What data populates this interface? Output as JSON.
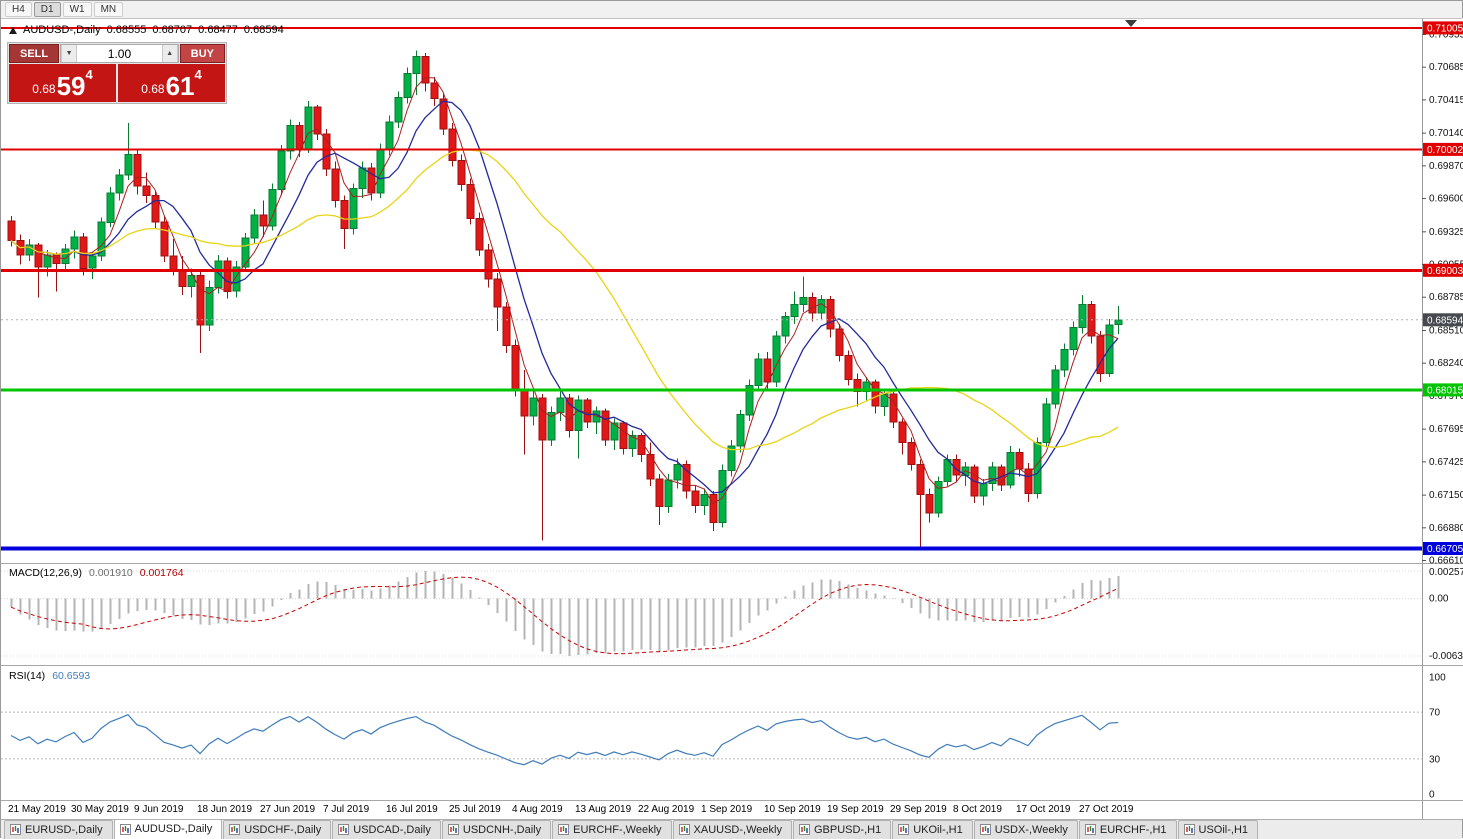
{
  "toolbar": {
    "timeframes": [
      "H4",
      "D1",
      "W1",
      "MN"
    ],
    "active": "D1"
  },
  "chart": {
    "title": "AUDUSD-,Daily",
    "open": "0.68555",
    "high": "0.68707",
    "low": "0.68477",
    "close": "0.68594"
  },
  "one_click": {
    "sell_label": "SELL",
    "buy_label": "BUY",
    "volume": "1.00",
    "bid": {
      "prefix": "0.68",
      "big": "59",
      "pip": "4"
    },
    "ask": {
      "prefix": "0.68",
      "big": "61",
      "pip": "4"
    }
  },
  "price_axis": {
    "ticks": [
      "0.70955",
      "0.70685",
      "0.70415",
      "0.70140",
      "0.69870",
      "0.69600",
      "0.69325",
      "0.69055",
      "0.68785",
      "0.68510",
      "0.68240",
      "0.67970",
      "0.67695",
      "0.67425",
      "0.67150",
      "0.66880",
      "0.66610"
    ]
  },
  "levels": [
    {
      "price": 0.71005,
      "label": "0.71005",
      "color": "#e00000",
      "thickness": 2
    },
    {
      "price": 0.70002,
      "label": "0.70002",
      "color": "#e00000",
      "thickness": 2
    },
    {
      "price": 0.69003,
      "label": "0.69003",
      "color": "#e00000",
      "thickness": 3
    },
    {
      "price": 0.68015,
      "label": "0.68015",
      "color": "#00c400",
      "thickness": 3
    },
    {
      "price": 0.66705,
      "label": "0.66705",
      "color": "#0000dc",
      "thickness": 4
    }
  ],
  "current_price": {
    "value": 0.68594,
    "label": "0.68594",
    "badge_color": "#46494d",
    "line_color": "#b0b0b0"
  },
  "macd": {
    "label": "MACD(12,26,9)",
    "value_macd": "0.001910",
    "value_signal": "0.001764",
    "axis_top": "0.002574",
    "axis_zero": "0.00",
    "axis_bottom": "-0.006326",
    "fast": 12,
    "sl": 26,
    "sig": 9,
    "histogram_color": "#b4b4b4",
    "signal_color": "#cc0000"
  },
  "rsi": {
    "label": "RSI(14)",
    "value": "60.6593",
    "period": 14,
    "axis": [
      "100",
      "70",
      "30",
      "0"
    ],
    "levels": [
      70,
      30
    ],
    "line_color": "#3f7cba"
  },
  "tabs": [
    {
      "label": "EURUSD-,Daily"
    },
    {
      "label": "AUDUSD-,Daily"
    },
    {
      "label": "USDCHF-,Daily"
    },
    {
      "label": "USDCAD-,Daily"
    },
    {
      "label": "USDCNH-,Daily"
    },
    {
      "label": "EURCHF-,Weekly"
    },
    {
      "label": "XAUUSD-,Weekly"
    },
    {
      "label": "GBPUSD-,H1"
    },
    {
      "label": "UKOil-,H1"
    },
    {
      "label": "USDX-,Weekly"
    },
    {
      "label": "EURCHF-,H1"
    },
    {
      "label": "USOil-,H1"
    }
  ],
  "active_tab_index": 1,
  "chart_data": {
    "type": "candlestick",
    "symbol": "AUDUSD",
    "period": "Daily",
    "ylim": [
      0.66593,
      0.71087
    ],
    "up_color": "#00b246",
    "up_stroke": "#0a7a33",
    "down_color": "#e21717",
    "down_stroke": "#991111",
    "x_labels": [
      "21 May 2019",
      "30 May 2019",
      "9 Jun 2019",
      "18 Jun 2019",
      "27 Jun 2019",
      "7 Jul 2019",
      "16 Jul 2019",
      "25 Jul 2019",
      "4 Aug 2019",
      "13 Aug 2019",
      "22 Aug 2019",
      "1 Sep 2019",
      "10 Sep 2019",
      "19 Sep 2019",
      "29 Sep 2019",
      "8 Oct 2019",
      "17 Oct 2019",
      "27 Oct 2019"
    ],
    "label_every": 7,
    "moving_averages": [
      {
        "name": "ma-fast",
        "period": 4,
        "color": "#aa2020",
        "width": 1
      },
      {
        "name": "ma-mid",
        "period": 8,
        "color": "#222a9e",
        "width": 1.3
      },
      {
        "name": "ma-slow",
        "period": 24,
        "color": "#e8d414",
        "width": 1.3
      }
    ],
    "candles": [
      [
        0.6941,
        0.6945,
        0.692,
        0.6925
      ],
      [
        0.6925,
        0.693,
        0.6905,
        0.6913
      ],
      [
        0.6913,
        0.6926,
        0.6908,
        0.6921
      ],
      [
        0.6921,
        0.6923,
        0.6878,
        0.6903
      ],
      [
        0.6903,
        0.6917,
        0.6895,
        0.6913
      ],
      [
        0.6913,
        0.6915,
        0.6883,
        0.6906
      ],
      [
        0.6906,
        0.6922,
        0.69,
        0.6918
      ],
      [
        0.6918,
        0.6933,
        0.691,
        0.6928
      ],
      [
        0.6928,
        0.6931,
        0.6896,
        0.6902
      ],
      [
        0.6902,
        0.6916,
        0.6893,
        0.6912
      ],
      [
        0.6912,
        0.6944,
        0.6908,
        0.694
      ],
      [
        0.694,
        0.6969,
        0.6936,
        0.6964
      ],
      [
        0.6964,
        0.6984,
        0.6958,
        0.6979
      ],
      [
        0.6979,
        0.7022,
        0.6975,
        0.6996
      ],
      [
        0.6996,
        0.7,
        0.6963,
        0.697
      ],
      [
        0.697,
        0.6981,
        0.6956,
        0.6962
      ],
      [
        0.6962,
        0.6966,
        0.6935,
        0.694
      ],
      [
        0.694,
        0.6945,
        0.6907,
        0.6912
      ],
      [
        0.6912,
        0.6926,
        0.6896,
        0.6901
      ],
      [
        0.6901,
        0.6912,
        0.688,
        0.6887
      ],
      [
        0.6887,
        0.6902,
        0.6878,
        0.6896
      ],
      [
        0.6896,
        0.6899,
        0.6832,
        0.6855
      ],
      [
        0.6855,
        0.6892,
        0.685,
        0.6886
      ],
      [
        0.6886,
        0.6913,
        0.6881,
        0.6908
      ],
      [
        0.6908,
        0.6911,
        0.6877,
        0.6883
      ],
      [
        0.6883,
        0.6908,
        0.6878,
        0.6903
      ],
      [
        0.6903,
        0.6931,
        0.6899,
        0.6927
      ],
      [
        0.6927,
        0.6951,
        0.6922,
        0.6946
      ],
      [
        0.6946,
        0.6958,
        0.6928,
        0.6937
      ],
      [
        0.6937,
        0.6972,
        0.6933,
        0.6967
      ],
      [
        0.6967,
        0.7004,
        0.6962,
        0.6999
      ],
      [
        0.6999,
        0.7025,
        0.6992,
        0.702
      ],
      [
        0.702,
        0.7023,
        0.6994,
        0.7
      ],
      [
        0.7,
        0.704,
        0.6997,
        0.7035
      ],
      [
        0.7035,
        0.7037,
        0.7008,
        0.7013
      ],
      [
        0.7013,
        0.7017,
        0.6978,
        0.6984
      ],
      [
        0.6984,
        0.699,
        0.6952,
        0.6958
      ],
      [
        0.6958,
        0.6962,
        0.6918,
        0.6935
      ],
      [
        0.6935,
        0.6972,
        0.693,
        0.6968
      ],
      [
        0.6968,
        0.699,
        0.696,
        0.6985
      ],
      [
        0.6985,
        0.6989,
        0.6958,
        0.6964
      ],
      [
        0.6964,
        0.7005,
        0.696,
        0.7
      ],
      [
        0.7,
        0.7028,
        0.6995,
        0.7023
      ],
      [
        0.7023,
        0.7048,
        0.7018,
        0.7043
      ],
      [
        0.7043,
        0.7068,
        0.7038,
        0.7063
      ],
      [
        0.7063,
        0.7082,
        0.7045,
        0.7077
      ],
      [
        0.7077,
        0.708,
        0.7048,
        0.7055
      ],
      [
        0.7055,
        0.706,
        0.7036,
        0.7042
      ],
      [
        0.7042,
        0.7046,
        0.7012,
        0.7017
      ],
      [
        0.7017,
        0.7022,
        0.6986,
        0.6991
      ],
      [
        0.6991,
        0.6996,
        0.6966,
        0.6971
      ],
      [
        0.6971,
        0.6976,
        0.6938,
        0.6943
      ],
      [
        0.6943,
        0.6948,
        0.6912,
        0.6917
      ],
      [
        0.6917,
        0.6922,
        0.6886,
        0.6893
      ],
      [
        0.6893,
        0.6898,
        0.685,
        0.687
      ],
      [
        0.687,
        0.6874,
        0.6832,
        0.6838
      ],
      [
        0.6838,
        0.6843,
        0.6796,
        0.6802
      ],
      [
        0.6802,
        0.6818,
        0.6748,
        0.678
      ],
      [
        0.678,
        0.68,
        0.6772,
        0.6795
      ],
      [
        0.6795,
        0.6798,
        0.6677,
        0.676
      ],
      [
        0.676,
        0.6788,
        0.6755,
        0.6783
      ],
      [
        0.6783,
        0.68,
        0.6776,
        0.6795
      ],
      [
        0.6795,
        0.6798,
        0.6762,
        0.6768
      ],
      [
        0.6768,
        0.6797,
        0.6745,
        0.6793
      ],
      [
        0.6793,
        0.6795,
        0.677,
        0.6775
      ],
      [
        0.6775,
        0.6788,
        0.6765,
        0.6784
      ],
      [
        0.6784,
        0.6786,
        0.6755,
        0.676
      ],
      [
        0.676,
        0.6778,
        0.6752,
        0.6774
      ],
      [
        0.6774,
        0.6776,
        0.6748,
        0.6753
      ],
      [
        0.6753,
        0.6768,
        0.6746,
        0.6764
      ],
      [
        0.6764,
        0.6766,
        0.6742,
        0.6748
      ],
      [
        0.6748,
        0.6758,
        0.6722,
        0.6728
      ],
      [
        0.6728,
        0.6732,
        0.669,
        0.6705
      ],
      [
        0.6705,
        0.6732,
        0.67,
        0.6727
      ],
      [
        0.6727,
        0.6745,
        0.672,
        0.674
      ],
      [
        0.674,
        0.6743,
        0.6712,
        0.6718
      ],
      [
        0.6718,
        0.6722,
        0.67,
        0.6706
      ],
      [
        0.6706,
        0.672,
        0.6698,
        0.6715
      ],
      [
        0.6715,
        0.6718,
        0.6685,
        0.6692
      ],
      [
        0.6692,
        0.674,
        0.6688,
        0.6735
      ],
      [
        0.6735,
        0.676,
        0.673,
        0.6755
      ],
      [
        0.6755,
        0.6785,
        0.675,
        0.6781
      ],
      [
        0.6781,
        0.681,
        0.6776,
        0.6805
      ],
      [
        0.6805,
        0.6832,
        0.68,
        0.6827
      ],
      [
        0.6827,
        0.6833,
        0.6802,
        0.6808
      ],
      [
        0.6808,
        0.685,
        0.6804,
        0.6846
      ],
      [
        0.6846,
        0.6866,
        0.684,
        0.6862
      ],
      [
        0.6862,
        0.6883,
        0.6856,
        0.6872
      ],
      [
        0.6872,
        0.6895,
        0.6866,
        0.6878
      ],
      [
        0.6878,
        0.6882,
        0.6858,
        0.6865
      ],
      [
        0.6865,
        0.688,
        0.686,
        0.6876
      ],
      [
        0.6876,
        0.6879,
        0.6845,
        0.6852
      ],
      [
        0.6852,
        0.6856,
        0.6825,
        0.683
      ],
      [
        0.683,
        0.6834,
        0.6805,
        0.681
      ],
      [
        0.681,
        0.6815,
        0.6788,
        0.68
      ],
      [
        0.68,
        0.6812,
        0.6792,
        0.6808
      ],
      [
        0.6808,
        0.681,
        0.6782,
        0.6788
      ],
      [
        0.6788,
        0.6802,
        0.678,
        0.6798
      ],
      [
        0.6798,
        0.68,
        0.677,
        0.6775
      ],
      [
        0.6775,
        0.6778,
        0.6748,
        0.6758
      ],
      [
        0.6758,
        0.6762,
        0.6735,
        0.674
      ],
      [
        0.674,
        0.6744,
        0.667,
        0.6715
      ],
      [
        0.6715,
        0.672,
        0.6692,
        0.67
      ],
      [
        0.67,
        0.673,
        0.6696,
        0.6726
      ],
      [
        0.6726,
        0.6748,
        0.6722,
        0.6744
      ],
      [
        0.6744,
        0.6748,
        0.6725,
        0.6731
      ],
      [
        0.6731,
        0.6742,
        0.6722,
        0.6738
      ],
      [
        0.6738,
        0.674,
        0.6708,
        0.6714
      ],
      [
        0.6714,
        0.6728,
        0.6706,
        0.6724
      ],
      [
        0.6724,
        0.6742,
        0.6718,
        0.6738
      ],
      [
        0.6738,
        0.674,
        0.6718,
        0.6723
      ],
      [
        0.6723,
        0.6755,
        0.672,
        0.675
      ],
      [
        0.675,
        0.6753,
        0.673,
        0.6736
      ],
      [
        0.6736,
        0.6741,
        0.6709,
        0.6716
      ],
      [
        0.6716,
        0.6762,
        0.6712,
        0.6758
      ],
      [
        0.6758,
        0.6795,
        0.6754,
        0.679
      ],
      [
        0.679,
        0.6822,
        0.6786,
        0.6818
      ],
      [
        0.6818,
        0.684,
        0.6812,
        0.6835
      ],
      [
        0.6835,
        0.6858,
        0.683,
        0.6853
      ],
      [
        0.6853,
        0.688,
        0.6848,
        0.6872
      ],
      [
        0.6872,
        0.6875,
        0.684,
        0.6846
      ],
      [
        0.6846,
        0.685,
        0.6808,
        0.6815
      ],
      [
        0.6815,
        0.686,
        0.6812,
        0.6855
      ],
      [
        0.68555,
        0.68707,
        0.68477,
        0.68594
      ]
    ]
  }
}
